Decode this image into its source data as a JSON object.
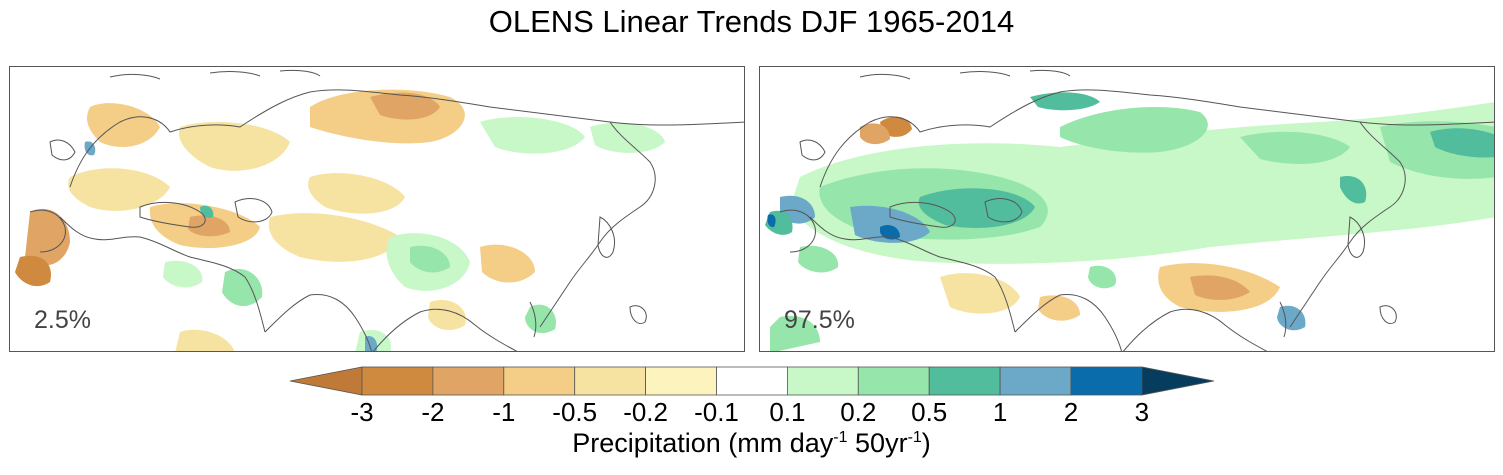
{
  "title": "OLENS Linear Trends DJF 1965-2014",
  "panels": [
    {
      "label": "2.5%"
    },
    {
      "label": "97.5%"
    }
  ],
  "colorbar": {
    "label_main": "Precipitation (mm day",
    "label_exp1": "-1",
    "label_mid": " 50yr",
    "label_exp2": "-1",
    "label_end": ")",
    "ticks": [
      "-3",
      "-2",
      "-1",
      "-0.5",
      "-0.2",
      "-0.1",
      "0.1",
      "0.2",
      "0.5",
      "1",
      "2",
      "3"
    ],
    "colors": [
      "#bf7a37",
      "#cf8a3f",
      "#e0a565",
      "#f4cd87",
      "#f6e2a1",
      "#fdf3bf",
      "#ffffff",
      "#c8f7c8",
      "#96e5aa",
      "#52bd9c",
      "#6ca8c8",
      "#0a6cab",
      "#063d5e"
    ]
  }
}
